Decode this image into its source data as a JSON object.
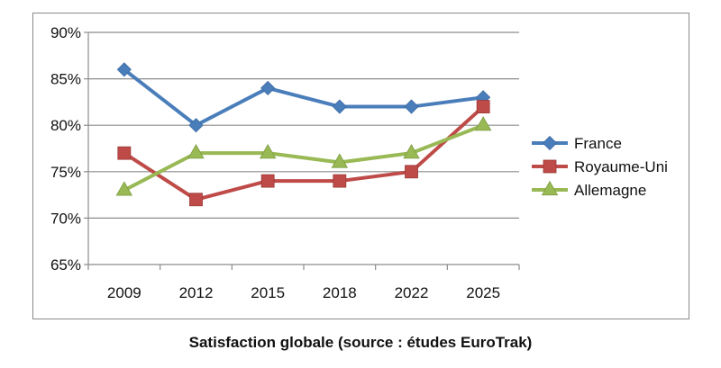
{
  "chart_data": {
    "type": "line",
    "title": "",
    "xlabel": "",
    "ylabel": "",
    "categories": [
      "2009",
      "2012",
      "2015",
      "2018",
      "2022",
      "2025"
    ],
    "ylim": [
      65,
      90
    ],
    "yticks": [
      65,
      70,
      75,
      80,
      85,
      90
    ],
    "ytick_labels": [
      "65%",
      "70%",
      "75%",
      "80%",
      "85%",
      "90%"
    ],
    "grid": true,
    "legend_position": "right",
    "series": [
      {
        "name": "France",
        "values": [
          86,
          80,
          84,
          82,
          82,
          83
        ],
        "color": "#4a7ebb",
        "marker": "diamond"
      },
      {
        "name": "Royaume-Uni",
        "values": [
          77,
          72,
          74,
          74,
          75,
          82
        ],
        "color": "#be4b48",
        "marker": "square"
      },
      {
        "name": "Allemagne",
        "values": [
          73,
          77,
          77,
          76,
          77,
          80
        ],
        "color": "#98b954",
        "marker": "triangle"
      }
    ]
  },
  "caption": "Satisfaction globale (source : études EuroTrak)"
}
